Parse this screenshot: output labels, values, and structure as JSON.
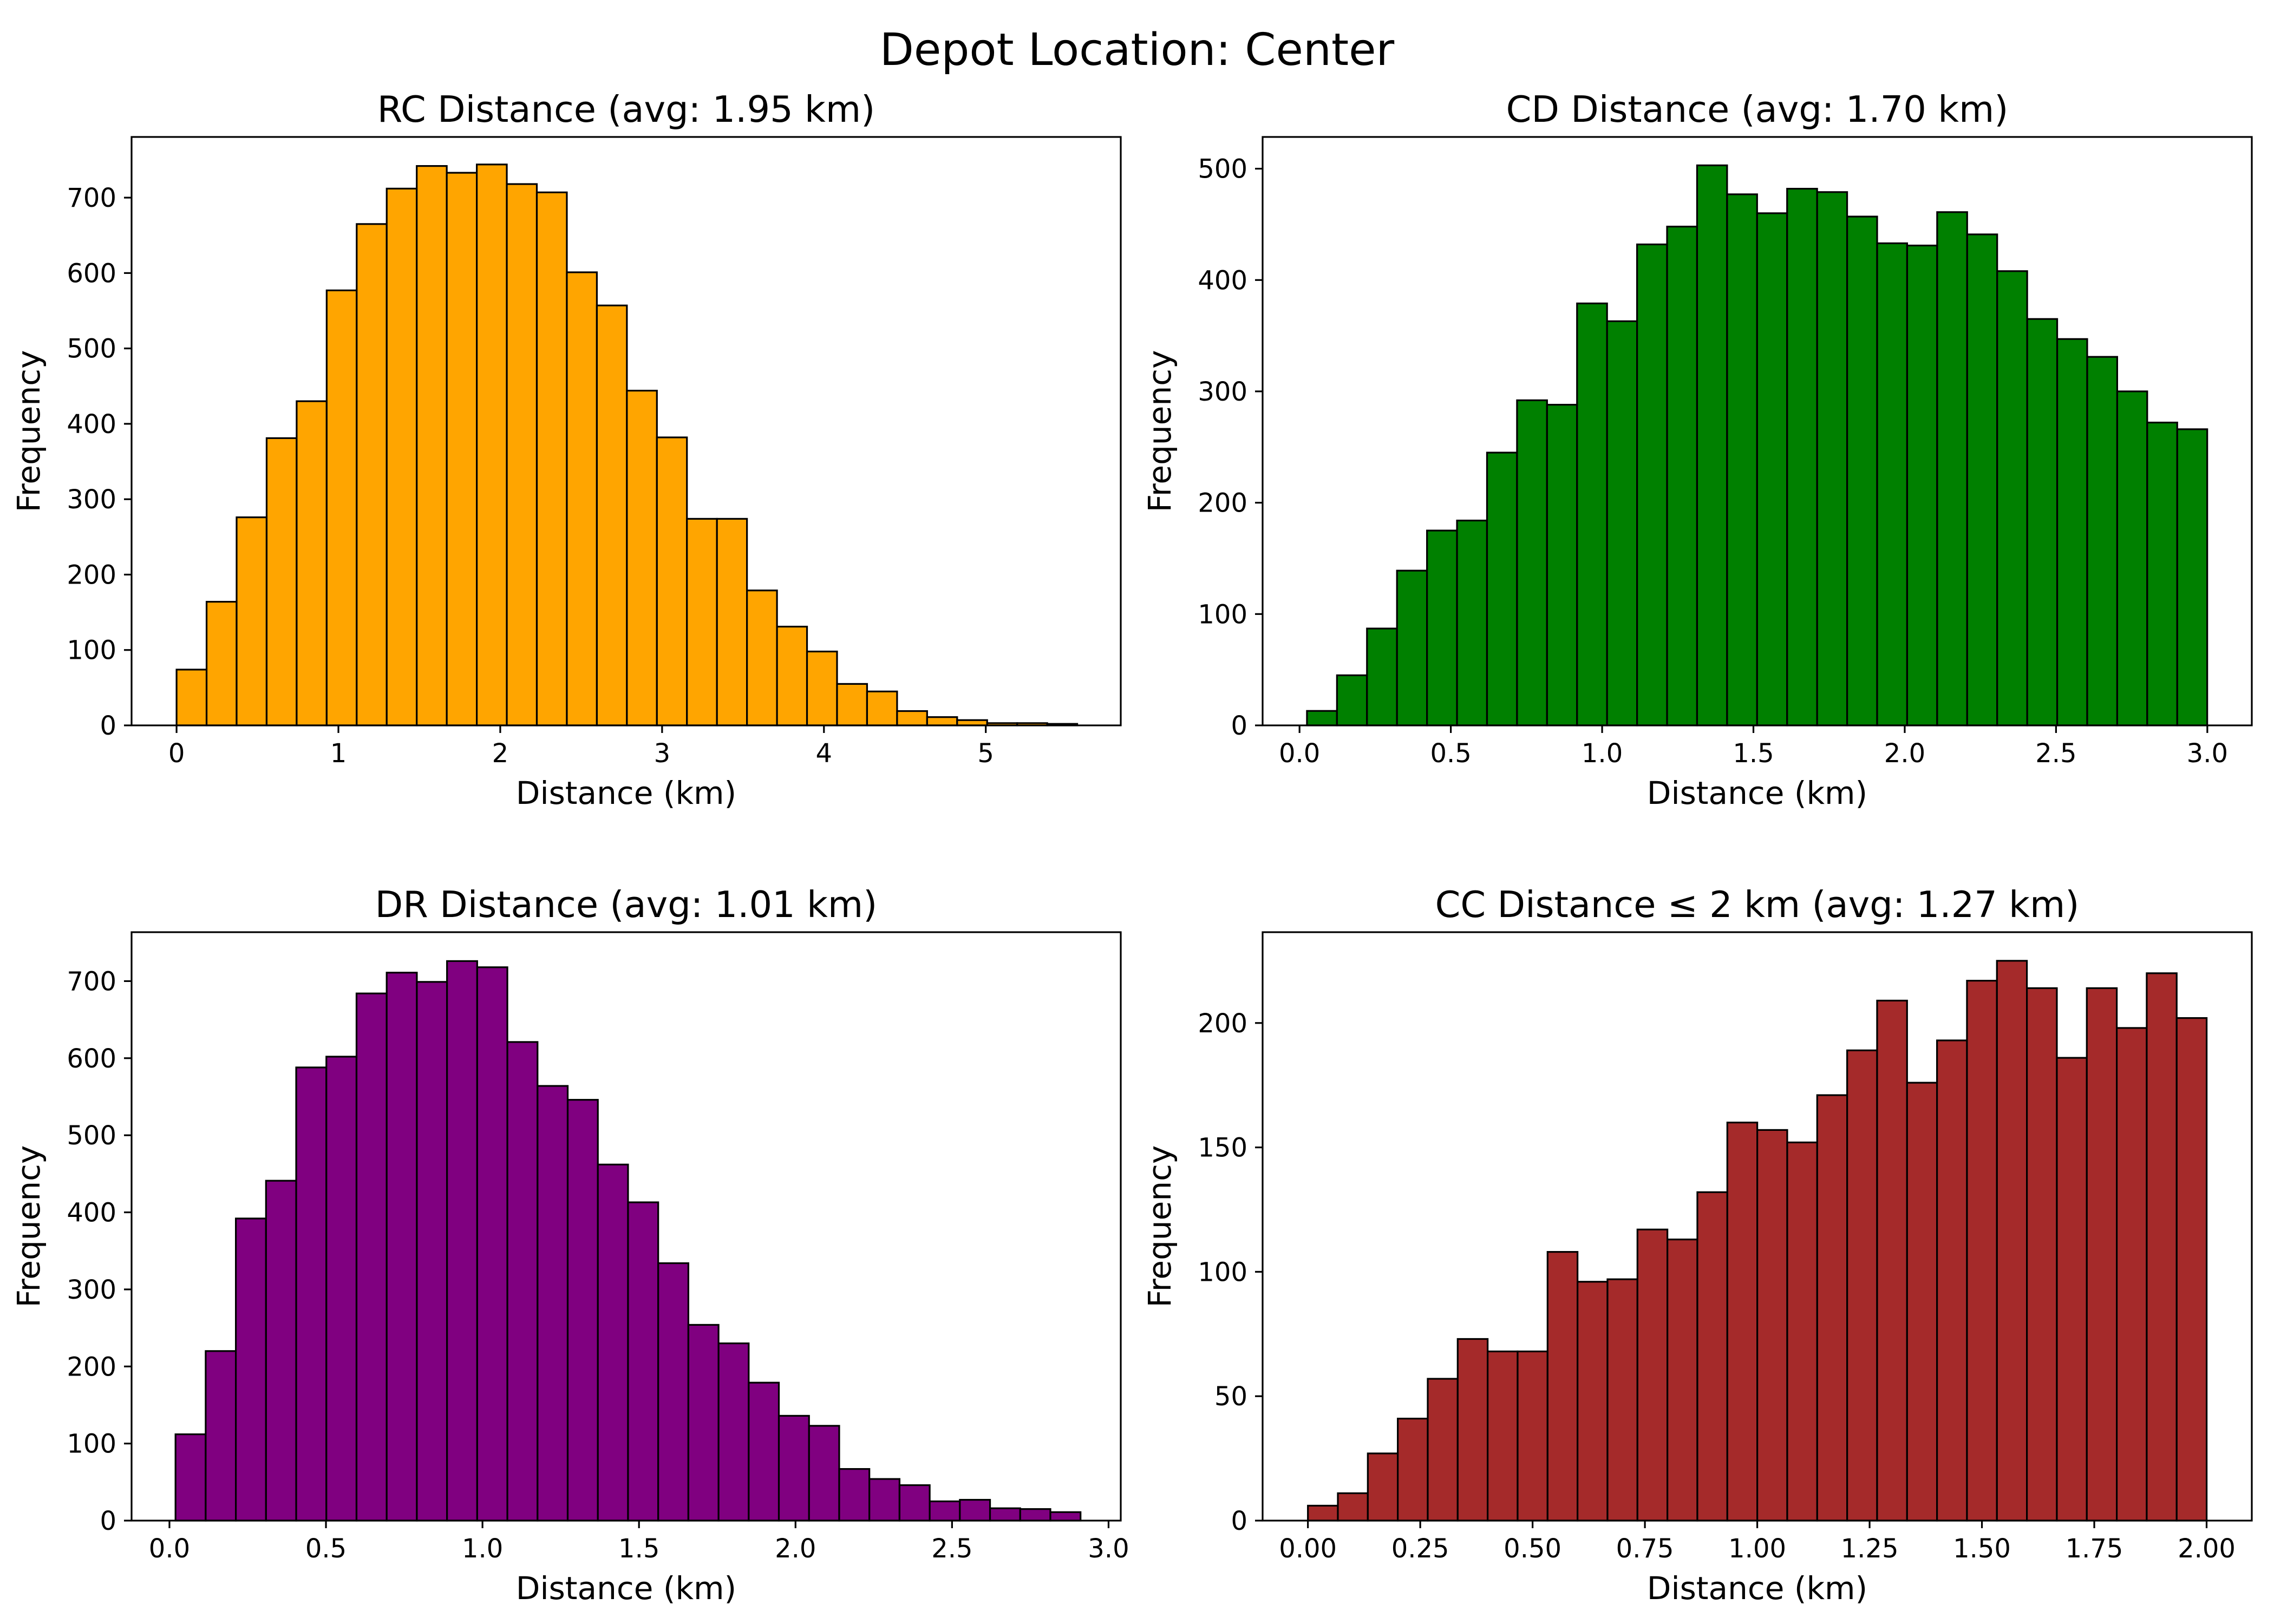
{
  "figure": {
    "suptitle": "Depot Location: Center"
  },
  "chart_data": [
    {
      "type": "bar",
      "title": "RC Distance (avg: 1.95 km)",
      "xlabel": "Distance (km)",
      "ylabel": "Frequency",
      "color": "#ffa500",
      "xlim": [
        -0.278,
        5.834
      ],
      "ylim": [
        0,
        780.5
      ],
      "xticks": [
        0,
        1,
        2,
        3,
        4,
        5
      ],
      "xtick_labels": [
        "0",
        "1",
        "2",
        "3",
        "4",
        "5"
      ],
      "yticks": [
        0,
        100,
        200,
        300,
        400,
        500,
        600,
        700
      ],
      "ytick_labels": [
        "0",
        "100",
        "200",
        "300",
        "400",
        "500",
        "600",
        "700"
      ],
      "bin_start": 0.0,
      "bin_width": 0.1855,
      "values": [
        74,
        164,
        276,
        381,
        430,
        577,
        665,
        712,
        742,
        733,
        744,
        718,
        707,
        601,
        557,
        444,
        382,
        274,
        274,
        179,
        131,
        98,
        55,
        45,
        19,
        11,
        7,
        3,
        3,
        2
      ]
    },
    {
      "type": "bar",
      "title": "CD Distance (avg: 1.70 km)",
      "xlabel": "Distance (km)",
      "ylabel": "Frequency",
      "color": "#008000",
      "xlim": [
        -0.122,
        3.147
      ],
      "ylim": [
        0,
        528.5
      ],
      "xticks": [
        0.0,
        0.5,
        1.0,
        1.5,
        2.0,
        2.5,
        3.0
      ],
      "xtick_labels": [
        "0.0",
        "0.5",
        "1.0",
        "1.5",
        "2.0",
        "2.5",
        "3.0"
      ],
      "yticks": [
        0,
        100,
        200,
        300,
        400,
        500
      ],
      "ytick_labels": [
        "0",
        "100",
        "200",
        "300",
        "400",
        "500"
      ],
      "bin_start": 0.0246,
      "bin_width": 0.09917,
      "values": [
        13,
        45,
        87,
        139,
        175,
        184,
        245,
        292,
        288,
        379,
        363,
        432,
        448,
        503,
        477,
        460,
        482,
        479,
        457,
        433,
        431,
        461,
        441,
        408,
        365,
        347,
        331,
        300,
        272,
        266
      ]
    },
    {
      "type": "bar",
      "title": "DR Distance (avg: 1.01 km)",
      "xlabel": "Distance (km)",
      "ylabel": "Frequency",
      "color": "#800080",
      "xlim": [
        -0.121,
        3.039
      ],
      "ylim": [
        0,
        763.5
      ],
      "xticks": [
        0.0,
        0.5,
        1.0,
        1.5,
        2.0,
        2.5,
        3.0
      ],
      "xtick_labels": [
        "0.0",
        "0.5",
        "1.0",
        "1.5",
        "2.0",
        "2.5",
        "3.0"
      ],
      "yticks": [
        0,
        100,
        200,
        300,
        400,
        500,
        600,
        700
      ],
      "ytick_labels": [
        "0",
        "100",
        "200",
        "300",
        "400",
        "500",
        "600",
        "700"
      ],
      "bin_start": 0.0194,
      "bin_width": 0.09637,
      "values": [
        112,
        220,
        392,
        441,
        588,
        602,
        684,
        711,
        699,
        726,
        718,
        621,
        564,
        546,
        462,
        413,
        334,
        254,
        230,
        179,
        136,
        123,
        67,
        54,
        46,
        25,
        27,
        16,
        15,
        11
      ]
    },
    {
      "type": "bar",
      "title": "CC Distance ≤ 2 km (avg: 1.27 km)",
      "xlabel": "Distance (km)",
      "ylabel": "Frequency",
      "color": "#a52a2a",
      "xlim": [
        -0.1008,
        2.1006
      ],
      "ylim": [
        0,
        236.5
      ],
      "xticks": [
        0.0,
        0.25,
        0.5,
        0.75,
        1.0,
        1.25,
        1.5,
        1.75,
        2.0
      ],
      "xtick_labels": [
        "0.00",
        "0.25",
        "0.50",
        "0.75",
        "1.00",
        "1.25",
        "1.50",
        "1.75",
        "2.00"
      ],
      "yticks": [
        0,
        50,
        100,
        150,
        200
      ],
      "ytick_labels": [
        "0",
        "50",
        "100",
        "150",
        "200"
      ],
      "bin_start": 0.0,
      "bin_width": 0.06667,
      "values": [
        6,
        11,
        27,
        41,
        57,
        73,
        68,
        68,
        108,
        96,
        97,
        117,
        113,
        132,
        160,
        157,
        152,
        171,
        189,
        209,
        176,
        193,
        217,
        225,
        214,
        186,
        214,
        198,
        220,
        202
      ]
    }
  ]
}
